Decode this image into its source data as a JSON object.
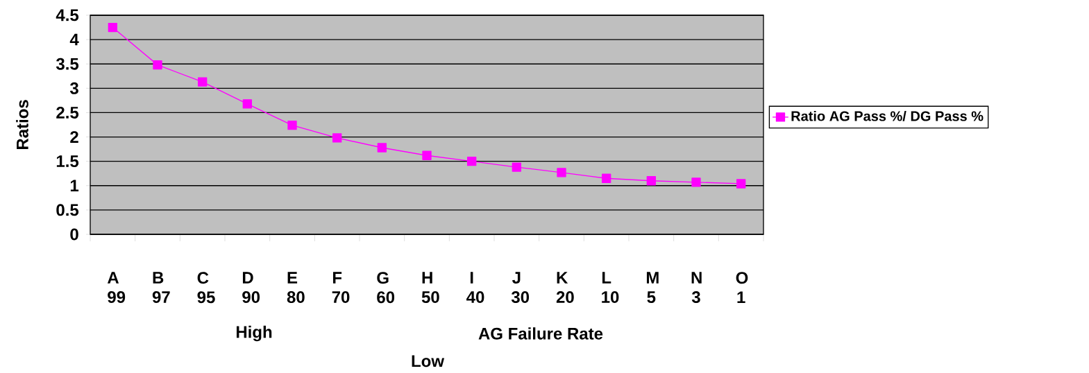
{
  "chart_data": {
    "type": "line",
    "xlabel": "AG Failure Rate",
    "ylabel": "Ratios",
    "categories": [
      "A 99",
      "B 97",
      "C 95",
      "D 90",
      "E 80",
      "F 70",
      "G 60",
      "H 50",
      "I 40",
      "J 30",
      "K 20",
      "L 10",
      "M 5",
      "N 3",
      "O 1"
    ],
    "series": [
      {
        "name": "Ratio AG Pass %/ DG Pass %",
        "color": "#ff00ff",
        "values": [
          4.25,
          3.48,
          3.13,
          2.68,
          2.24,
          1.98,
          1.78,
          1.62,
          1.5,
          1.38,
          1.27,
          1.15,
          1.1,
          1.07,
          1.04
        ]
      }
    ],
    "ylim": [
      0,
      4.5
    ],
    "yticks": [
      0,
      0.5,
      1,
      1.5,
      2,
      2.5,
      3,
      3.5,
      4,
      4.5
    ],
    "grid": "y",
    "legend": "right",
    "marker": "square",
    "line_style": "solid",
    "annotations": [
      "High",
      "Low"
    ]
  }
}
